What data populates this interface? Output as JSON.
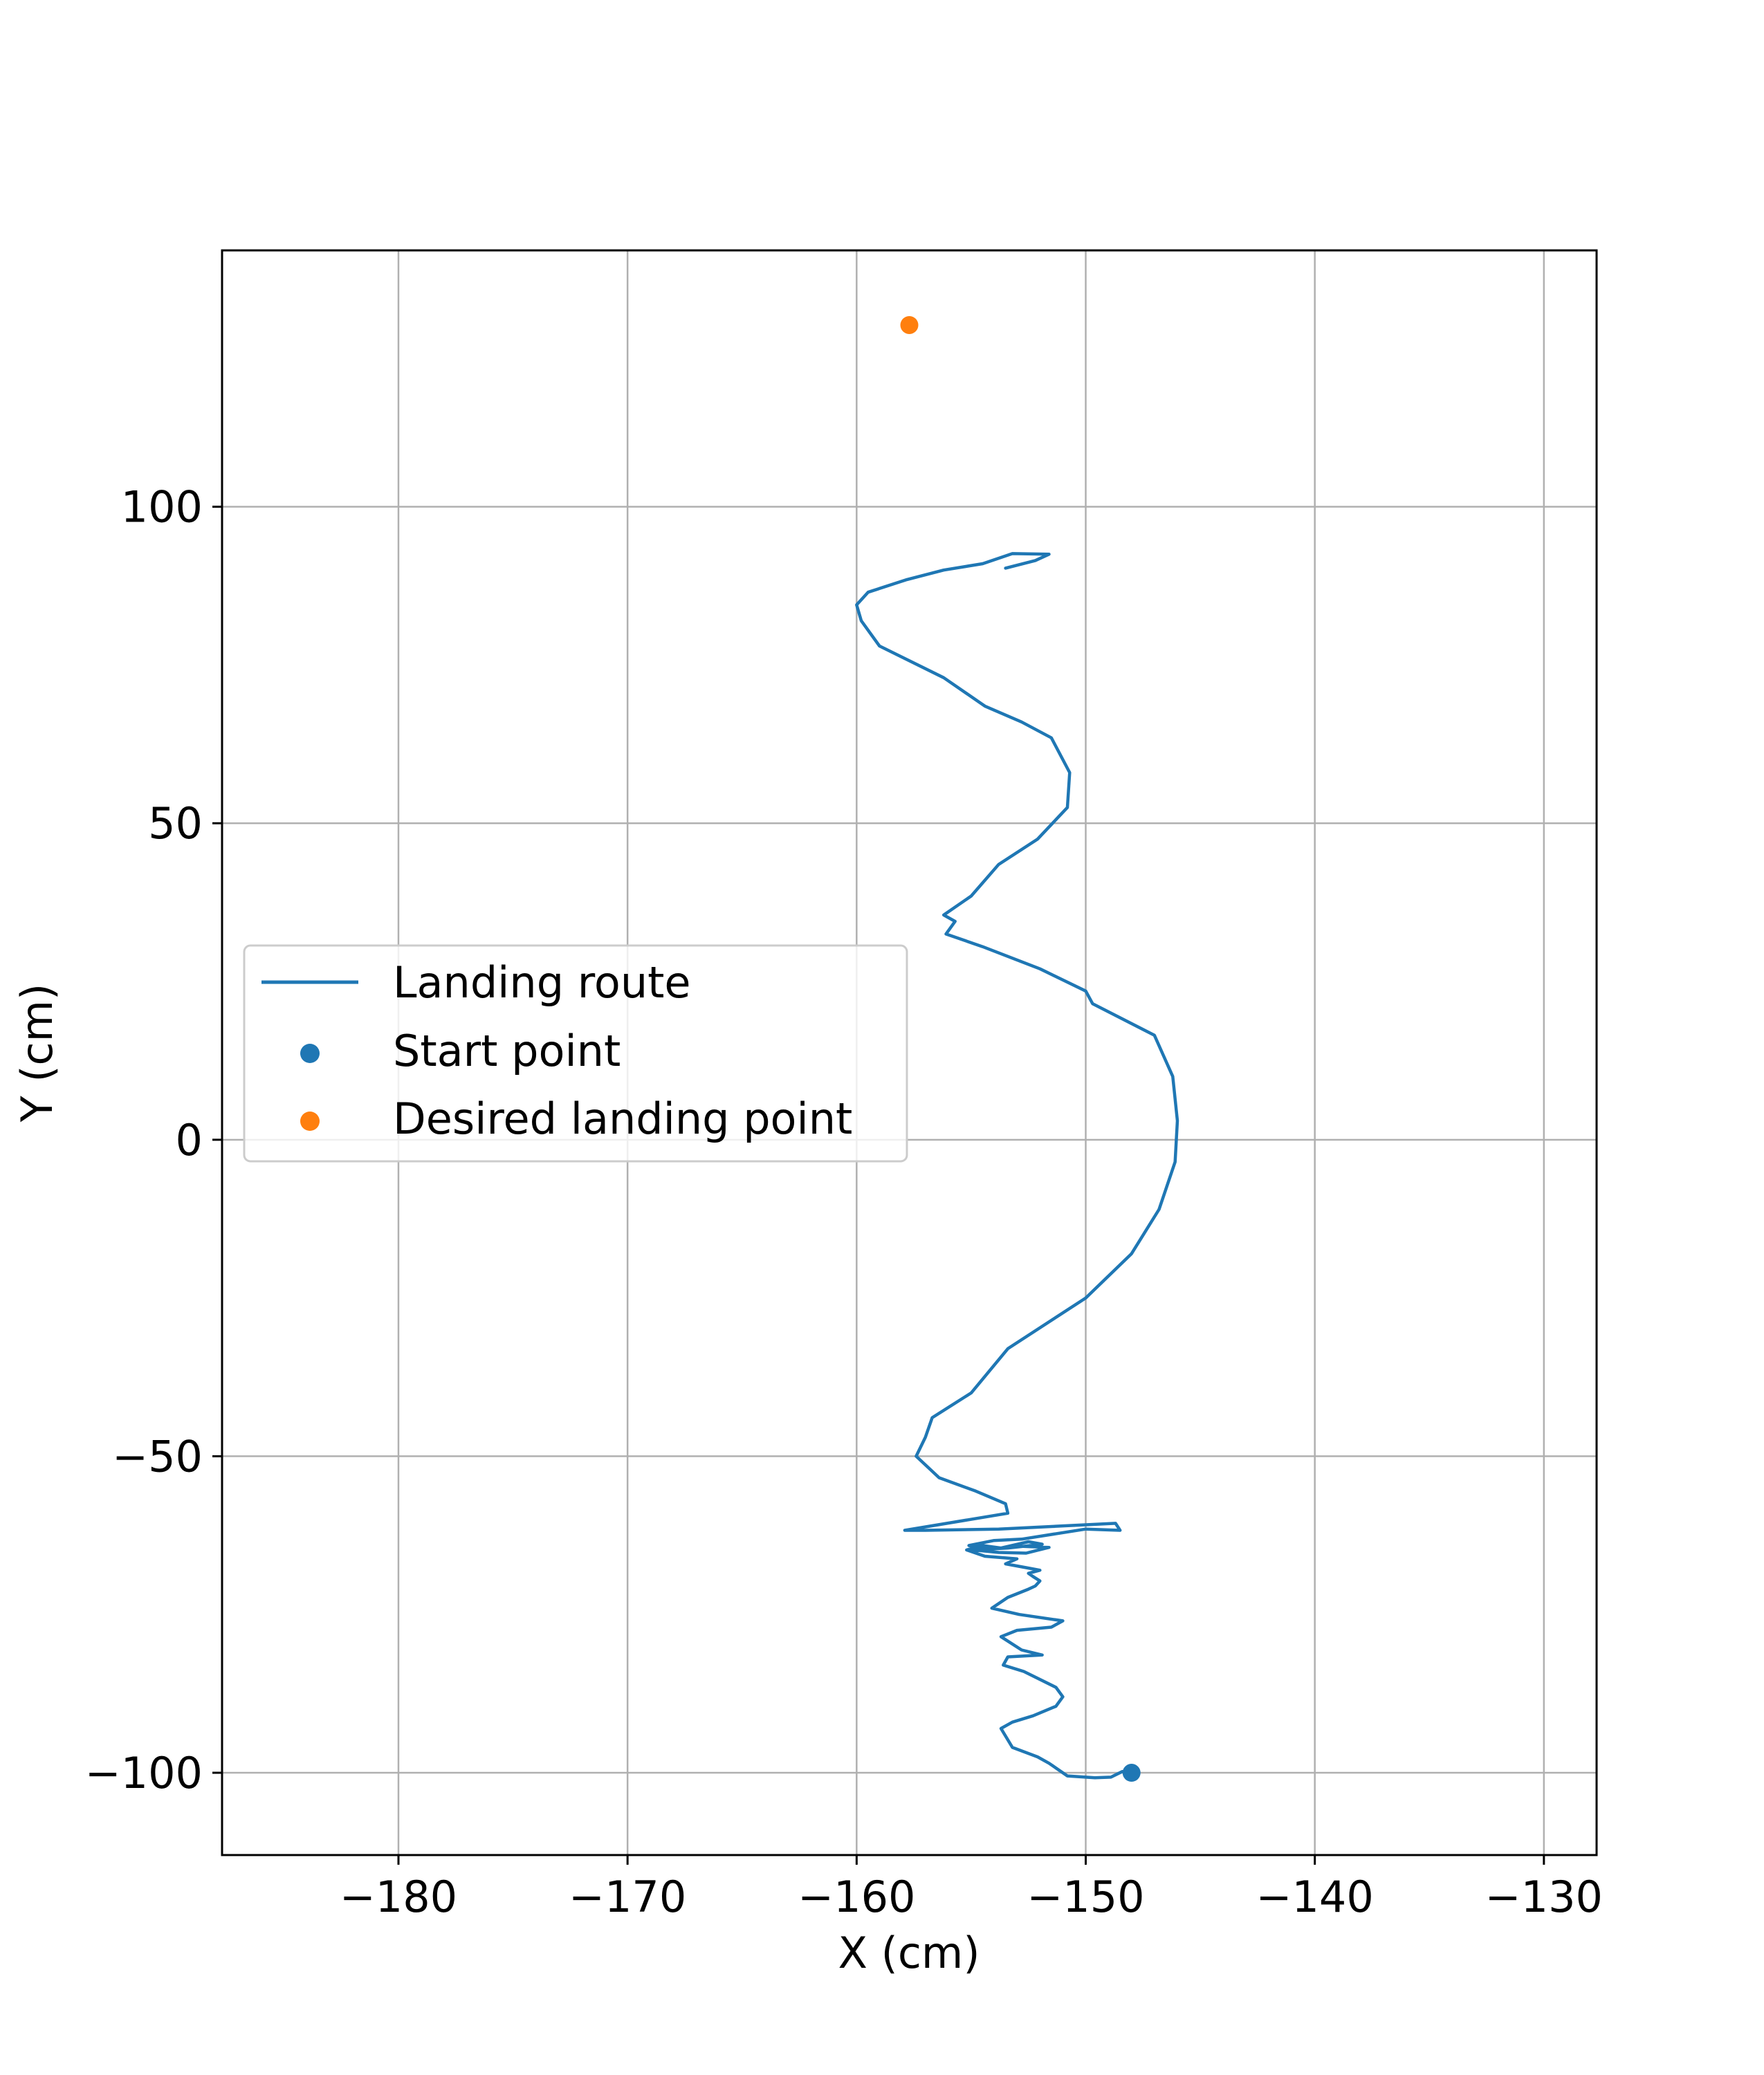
{
  "chart_data": {
    "type": "line",
    "title": "",
    "xlabel": "X (cm)",
    "ylabel": "Y (cm)",
    "xlim": [
      -187.7,
      -127.7
    ],
    "ylim": [
      -113,
      140.5
    ],
    "xticks": [
      -180,
      -170,
      -160,
      -150,
      -140,
      -130
    ],
    "xtick_labels": [
      "−180",
      "−170",
      "−160",
      "−150",
      "−140",
      "−130"
    ],
    "yticks": [
      -100,
      -50,
      0,
      50,
      100
    ],
    "ytick_labels": [
      "−100",
      "−50",
      "0",
      "50",
      "100"
    ],
    "grid": true,
    "legend": {
      "placement": "center-left",
      "entries": [
        "Landing route",
        "Start point",
        "Desired landing point"
      ]
    },
    "series": [
      {
        "name": "Landing route",
        "type": "line",
        "color": "#1f77b4",
        "x": [
          -148.0,
          -148.4,
          -148.9,
          -149.6,
          -150.8,
          -151.6,
          -152.1,
          -153.2,
          -153.7,
          -153.2,
          -152.3,
          -151.3,
          -151.0,
          -151.3,
          -152.7,
          -153.6,
          -153.4,
          -151.9,
          -152.8,
          -153.7,
          -153.0,
          -151.5,
          -151.0,
          -152.9,
          -154.1,
          -153.4,
          -152.5,
          -152.2,
          -152.0,
          -152.3,
          -152.5,
          -152.0,
          -152.6,
          -153.5,
          -153.0,
          -154.4,
          -155.2,
          -154.5,
          -153.7,
          -152.5,
          -151.9,
          -153.4,
          -154.9,
          -153.8,
          -152.6,
          -151.6,
          -153.0,
          -154.2,
          -155.1,
          -154.0,
          -152.8,
          -150.0,
          -148.5,
          -148.7,
          -153.8,
          -157.0,
          -157.9,
          -153.4,
          -153.5,
          -154.8,
          -156.4,
          -157.4,
          -157.0,
          -156.7,
          -155.0,
          -153.4,
          -150.0,
          -148.0,
          -146.8,
          -146.1,
          -146.0,
          -146.2,
          -147.0,
          -149.7,
          -150.0,
          -152.0,
          -154.5,
          -156.1,
          -155.7,
          -156.2,
          -155.0,
          -153.8,
          -152.1,
          -150.8,
          -150.7,
          -151.5,
          -152.8,
          -154.4,
          -156.2,
          -159.0,
          -159.8,
          -160.0,
          -159.5,
          -157.8,
          -156.2,
          -154.5,
          -153.2,
          -151.6,
          -152.2,
          -153.5
        ],
        "y": [
          -100.0,
          -99.8,
          -100.7,
          -100.8,
          -100.5,
          -98.5,
          -97.5,
          -96.0,
          -93.0,
          -92.0,
          -91.0,
          -89.5,
          -88.0,
          -86.5,
          -84.0,
          -83.0,
          -81.7,
          -81.4,
          -80.6,
          -78.5,
          -77.5,
          -77.0,
          -76.0,
          -75.0,
          -74.0,
          -72.3,
          -71.0,
          -70.5,
          -69.7,
          -69.0,
          -68.5,
          -68.0,
          -67.6,
          -67.0,
          -66.2,
          -65.8,
          -64.8,
          -64.1,
          -64.5,
          -63.5,
          -63.9,
          -64.5,
          -64.8,
          -65.2,
          -65.3,
          -64.4,
          -64.2,
          -64.7,
          -64.1,
          -63.3,
          -63.1,
          -61.5,
          -61.7,
          -60.6,
          -61.5,
          -61.7,
          -61.7,
          -59.0,
          -57.5,
          -55.5,
          -53.4,
          -50.0,
          -47.0,
          -43.9,
          -40.0,
          -33.0,
          -25.0,
          -18.0,
          -11.0,
          -3.5,
          3.0,
          10.0,
          16.5,
          21.5,
          23.5,
          27.0,
          30.5,
          32.5,
          34.5,
          35.5,
          38.5,
          43.5,
          47.5,
          52.5,
          58.0,
          63.5,
          66.0,
          68.5,
          73.0,
          78.0,
          82.0,
          84.5,
          86.5,
          88.5,
          90.0,
          91.0,
          92.6,
          92.5,
          91.5,
          90.3
        ]
      },
      {
        "name": "Start point",
        "type": "scatter",
        "color": "#1f77b4",
        "x": [
          -148.0
        ],
        "y": [
          -100.0
        ]
      },
      {
        "name": "Desired landing point",
        "type": "scatter",
        "color": "#ff7f0e",
        "x": [
          -157.7
        ],
        "y": [
          128.7
        ]
      }
    ]
  }
}
